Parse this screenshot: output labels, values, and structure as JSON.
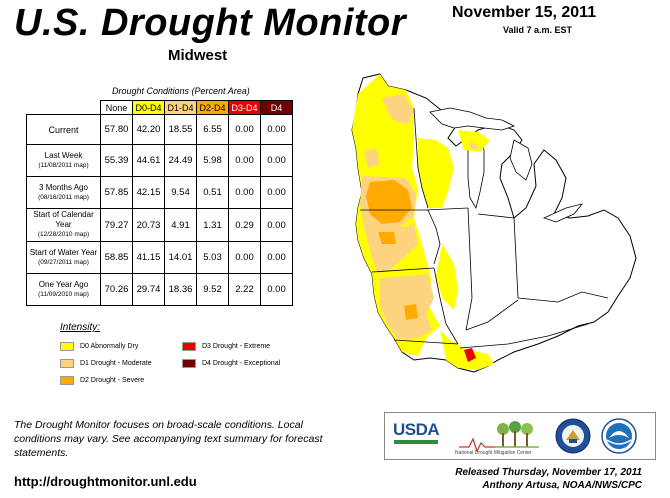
{
  "header": {
    "title": "U.S. Drought Monitor",
    "region": "Midwest",
    "date": "November 15, 2011",
    "valid": "Valid 7 a.m. EST"
  },
  "table": {
    "caption": "Drought Conditions (Percent Area)",
    "columns": [
      "None",
      "D0-D4",
      "D1-D4",
      "D2-D4",
      "D3-D4",
      "D4"
    ],
    "rows": [
      {
        "label": "Current",
        "sub": "",
        "values": [
          "57.80",
          "42.20",
          "18.55",
          "6.55",
          "0.00",
          "0.00"
        ]
      },
      {
        "label": "Last Week",
        "sub": "(11/08/2011 map)",
        "values": [
          "55.39",
          "44.61",
          "24.49",
          "5.98",
          "0.00",
          "0.00"
        ]
      },
      {
        "label": "3 Months Ago",
        "sub": "(08/16/2011 map)",
        "values": [
          "57.85",
          "42.15",
          "9.54",
          "0.51",
          "0.00",
          "0.00"
        ]
      },
      {
        "label": "Start of Calendar Year",
        "sub": "(12/28/2010 map)",
        "values": [
          "79.27",
          "20.73",
          "4.91",
          "1.31",
          "0.29",
          "0.00"
        ]
      },
      {
        "label": "Start of Water Year",
        "sub": "(09/27/2011 map)",
        "values": [
          "58.85",
          "41.15",
          "14.01",
          "5.03",
          "0.00",
          "0.00"
        ]
      },
      {
        "label": "One Year Ago",
        "sub": "(11/09/2010 map)",
        "values": [
          "70.26",
          "29.74",
          "18.36",
          "9.52",
          "2.22",
          "0.00"
        ]
      }
    ]
  },
  "legend": {
    "title": "Intensity:",
    "items": [
      {
        "label": "D0 Abnormally Dry",
        "color": "#ffff00"
      },
      {
        "label": "D1 Drought - Moderate",
        "color": "#fcd37f"
      },
      {
        "label": "D2 Drought - Severe",
        "color": "#ffaa00"
      },
      {
        "label": "D3 Drought - Extreme",
        "color": "#e60000"
      },
      {
        "label": "D4 Drought - Exceptional",
        "color": "#730000"
      }
    ]
  },
  "footer": {
    "note": "The Drought Monitor focuses on broad-scale conditions. Local conditions may vary. See accompanying text summary for forecast statements.",
    "url": "http://droughtmonitor.unl.edu",
    "released": "Released Thursday, November 17, 2011",
    "author": "Anthony Artusa, NOAA/NWS/CPC"
  },
  "logos": {
    "usda": "USDA",
    "ndmc": "National Drought Mitigation Center"
  }
}
